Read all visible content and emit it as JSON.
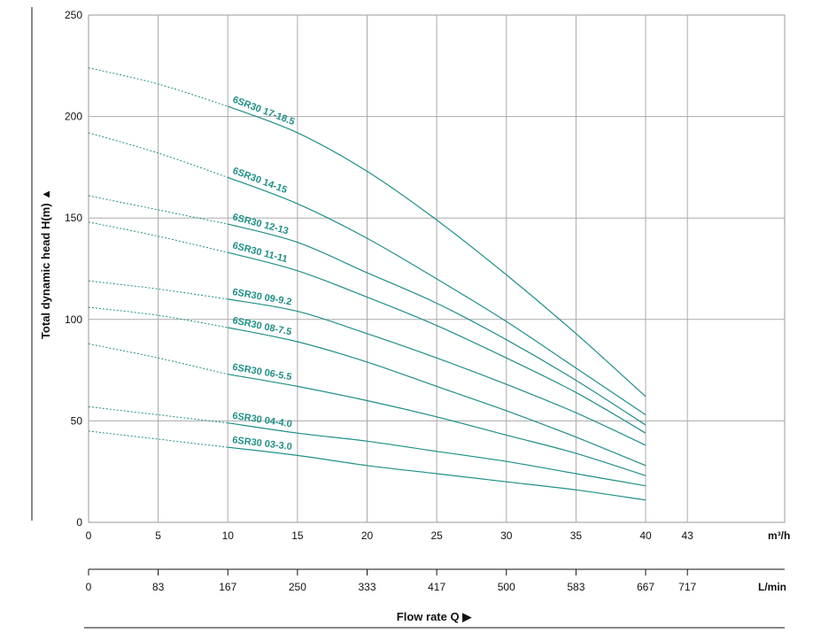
{
  "chart_data": {
    "type": "line",
    "ylabel": "Total dynamic head H(m) ▲",
    "xlabel": "Flow rate Q ▶",
    "x_unit": "m³/h",
    "x2_unit": "L/min",
    "xlim": [
      0,
      50
    ],
    "ylim": [
      0,
      250
    ],
    "x_ticks": [
      0,
      5,
      10,
      15,
      20,
      25,
      30,
      35,
      40,
      43
    ],
    "x_tick_labels": [
      "0",
      "5",
      "10",
      "15",
      "20",
      "25",
      "30",
      "35",
      "40",
      "43"
    ],
    "x2_tick_labels": [
      "0",
      "83",
      "167",
      "250",
      "333",
      "417",
      "500",
      "583",
      "667",
      "717"
    ],
    "y_ticks": [
      0,
      50,
      100,
      150,
      200,
      250
    ],
    "grid": true,
    "line_color": "#1f8f86",
    "series": [
      {
        "name": "6SR30 17-18.5",
        "dashed": {
          "x": [
            0,
            5,
            10
          ],
          "y": [
            224,
            216,
            205
          ]
        },
        "solid": {
          "x": [
            10,
            15,
            20,
            25,
            30,
            35,
            40
          ],
          "y": [
            205,
            192,
            173,
            149,
            122,
            93,
            62
          ]
        }
      },
      {
        "name": "6SR30 14-15",
        "dashed": {
          "x": [
            0,
            5,
            10
          ],
          "y": [
            192,
            182,
            170
          ]
        },
        "solid": {
          "x": [
            10,
            15,
            20,
            25,
            30,
            35,
            40
          ],
          "y": [
            170,
            157,
            140,
            120,
            99,
            76,
            53
          ]
        }
      },
      {
        "name": "6SR30 12-13",
        "dashed": {
          "x": [
            0,
            5,
            10
          ],
          "y": [
            161,
            154,
            147
          ]
        },
        "solid": {
          "x": [
            10,
            15,
            20,
            25,
            30,
            35,
            40
          ],
          "y": [
            147,
            138,
            123,
            108,
            90,
            70,
            48
          ]
        }
      },
      {
        "name": "6SR30 11-11",
        "dashed": {
          "x": [
            0,
            5,
            10
          ],
          "y": [
            148,
            141,
            133
          ]
        },
        "solid": {
          "x": [
            10,
            15,
            20,
            25,
            30,
            35,
            40
          ],
          "y": [
            133,
            124,
            111,
            97,
            81,
            64,
            44
          ]
        }
      },
      {
        "name": "6SR30 09-9.2",
        "dashed": {
          "x": [
            0,
            5,
            10
          ],
          "y": [
            119,
            115,
            110
          ]
        },
        "solid": {
          "x": [
            10,
            15,
            20,
            25,
            30,
            35,
            40
          ],
          "y": [
            110,
            104,
            93,
            81,
            68,
            54,
            38
          ]
        }
      },
      {
        "name": "6SR30 08-7.5",
        "dashed": {
          "x": [
            0,
            5,
            10
          ],
          "y": [
            106,
            102,
            96
          ]
        },
        "solid": {
          "x": [
            10,
            15,
            20,
            25,
            30,
            35,
            40
          ],
          "y": [
            96,
            89,
            79,
            67,
            55,
            42,
            28
          ]
        }
      },
      {
        "name": "6SR30 06-5.5",
        "dashed": {
          "x": [
            0,
            5,
            10
          ],
          "y": [
            88,
            81,
            73
          ]
        },
        "solid": {
          "x": [
            10,
            15,
            20,
            25,
            30,
            35,
            40
          ],
          "y": [
            73,
            67,
            60,
            52,
            43,
            34,
            23
          ]
        }
      },
      {
        "name": "6SR30 04-4.0",
        "dashed": {
          "x": [
            0,
            5,
            10
          ],
          "y": [
            57,
            53,
            49
          ]
        },
        "solid": {
          "x": [
            10,
            15,
            20,
            25,
            30,
            35,
            40
          ],
          "y": [
            49,
            44,
            40,
            35,
            30,
            24,
            18
          ]
        }
      },
      {
        "name": "6SR30 03-3.0",
        "dashed": {
          "x": [
            0,
            5,
            10
          ],
          "y": [
            45,
            41,
            37
          ]
        },
        "solid": {
          "x": [
            10,
            15,
            20,
            25,
            30,
            35,
            40
          ],
          "y": [
            37,
            33,
            28,
            24,
            20,
            16,
            11
          ]
        }
      }
    ]
  }
}
